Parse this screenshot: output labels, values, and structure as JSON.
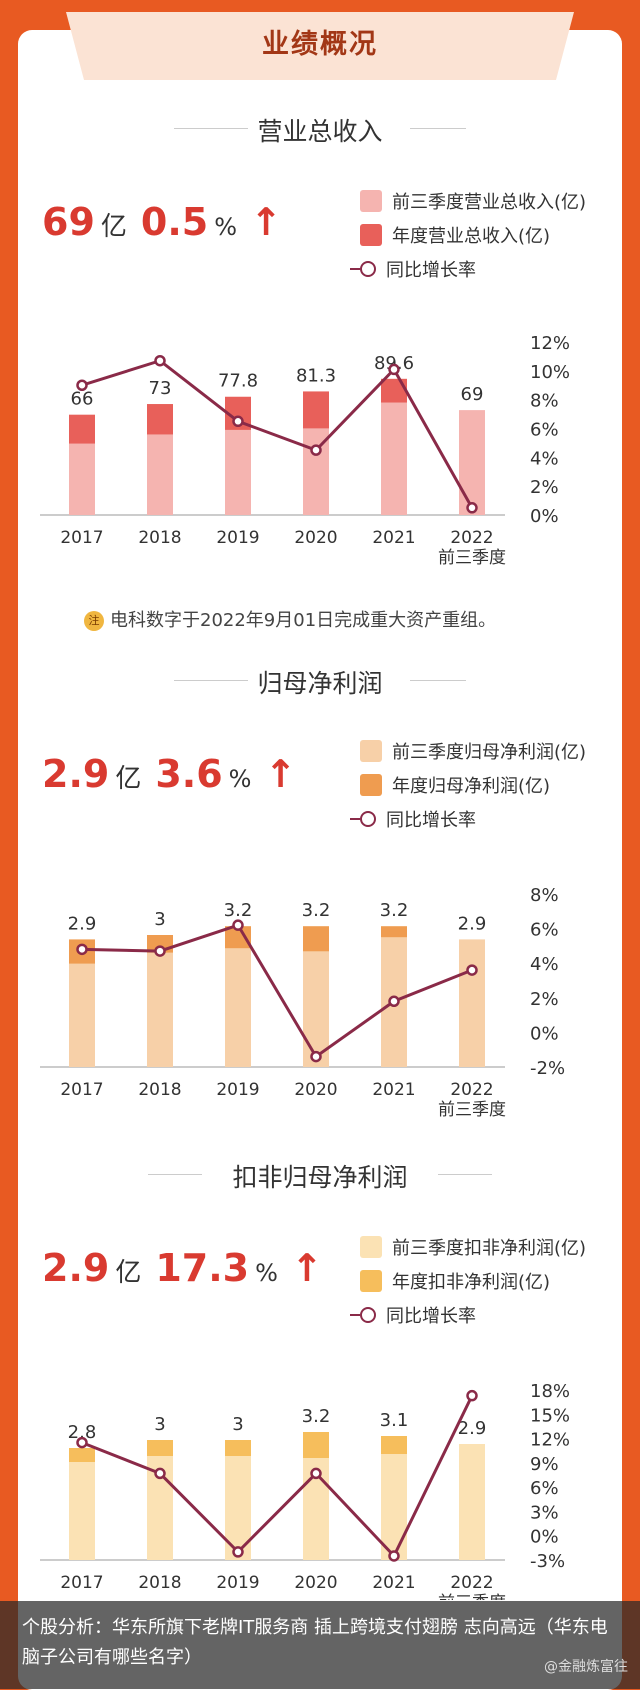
{
  "banner_title": "业绩概况",
  "note": "电科数字于2022年9月01日完成重大资产重组。",
  "note_icon_text": "注",
  "footer_text": "个股分析：华东所旗下老牌IT服务商 插上跨境支付翅膀 志向高远（华东电脑子公司有哪些名字）",
  "watermark": "@金融炼富往",
  "colors": {
    "accent": "#d93a30",
    "line": "#8a2a48",
    "background": "#e85a22"
  },
  "sections": [
    {
      "title": "营业总收入",
      "headline_value": "69",
      "headline_unit": "亿",
      "headline_pct": "0.5",
      "pct_unit": "%",
      "legend": [
        "前三季度营业总收入(亿)",
        "年度营业总收入(亿)",
        "同比增长率"
      ]
    },
    {
      "title": "归母净利润",
      "headline_value": "2.9",
      "headline_unit": "亿",
      "headline_pct": "3.6",
      "pct_unit": "%",
      "legend": [
        "前三季度归母净利润(亿)",
        "年度归母净利润(亿)",
        "同比增长率"
      ]
    },
    {
      "title": "扣非归母净利润",
      "headline_value": "2.9",
      "headline_unit": "亿",
      "headline_pct": "17.3",
      "pct_unit": "%",
      "legend": [
        "前三季度扣非净利润(亿)",
        "年度扣非净利润(亿)",
        "同比增长率"
      ]
    }
  ],
  "chart_data": [
    {
      "type": "bar",
      "categories": [
        "2017",
        "2018",
        "2019",
        "2020",
        "2021",
        "2022"
      ],
      "category_sublabel": "前三季度",
      "annual_values": [
        66,
        73,
        77.8,
        81.3,
        89.6,
        null
      ],
      "q3_values": [
        47,
        53,
        56,
        57,
        74,
        69
      ],
      "bar_labels": [
        "66",
        "73",
        "77.8",
        "81.3",
        "89.6",
        "69"
      ],
      "growth_rate": [
        9,
        10.7,
        6.5,
        4.5,
        10.1,
        0.5
      ],
      "y2_ticks": [
        "12%",
        "10%",
        "8%",
        "6%",
        "4%",
        "2%",
        "0%"
      ],
      "y2lim": [
        0,
        12
      ],
      "colors": {
        "q3": "#f5b4b0",
        "annual": "#e8605a"
      }
    },
    {
      "type": "bar",
      "categories": [
        "2017",
        "2018",
        "2019",
        "2020",
        "2021",
        "2022"
      ],
      "category_sublabel": "前三季度",
      "annual_values": [
        2.9,
        3,
        3.2,
        3.2,
        3.2,
        null
      ],
      "q3_values": [
        2.35,
        2.6,
        2.7,
        2.63,
        2.95,
        2.9
      ],
      "bar_labels": [
        "2.9",
        "3",
        "3.2",
        "3.2",
        "3.2",
        "2.9"
      ],
      "growth_rate": [
        4.8,
        4.7,
        6.2,
        -1.4,
        1.8,
        3.6
      ],
      "y2_ticks": [
        "8%",
        "6%",
        "4%",
        "2%",
        "0%",
        "-2%"
      ],
      "y2lim": [
        -2,
        8
      ],
      "colors": {
        "q3": "#f7d0a8",
        "annual": "#ef9c50"
      }
    },
    {
      "type": "bar",
      "categories": [
        "2017",
        "2018",
        "2019",
        "2020",
        "2021",
        "2022"
      ],
      "category_sublabel": "前三季度",
      "annual_values": [
        2.8,
        3,
        3,
        3.2,
        3.1,
        null
      ],
      "q3_values": [
        2.45,
        2.6,
        2.6,
        2.55,
        2.65,
        2.9
      ],
      "bar_labels": [
        "2.8",
        "3",
        "3",
        "3.2",
        "3.1",
        "2.9"
      ],
      "growth_rate": [
        11.5,
        7.7,
        -2,
        7.7,
        -2.5,
        17.3
      ],
      "y2_ticks": [
        "18%",
        "15%",
        "12%",
        "9%",
        "6%",
        "3%",
        "0%",
        "-3%"
      ],
      "y2lim": [
        -3,
        18
      ],
      "colors": {
        "q3": "#fbe2b4",
        "annual": "#f6be5c"
      }
    }
  ]
}
